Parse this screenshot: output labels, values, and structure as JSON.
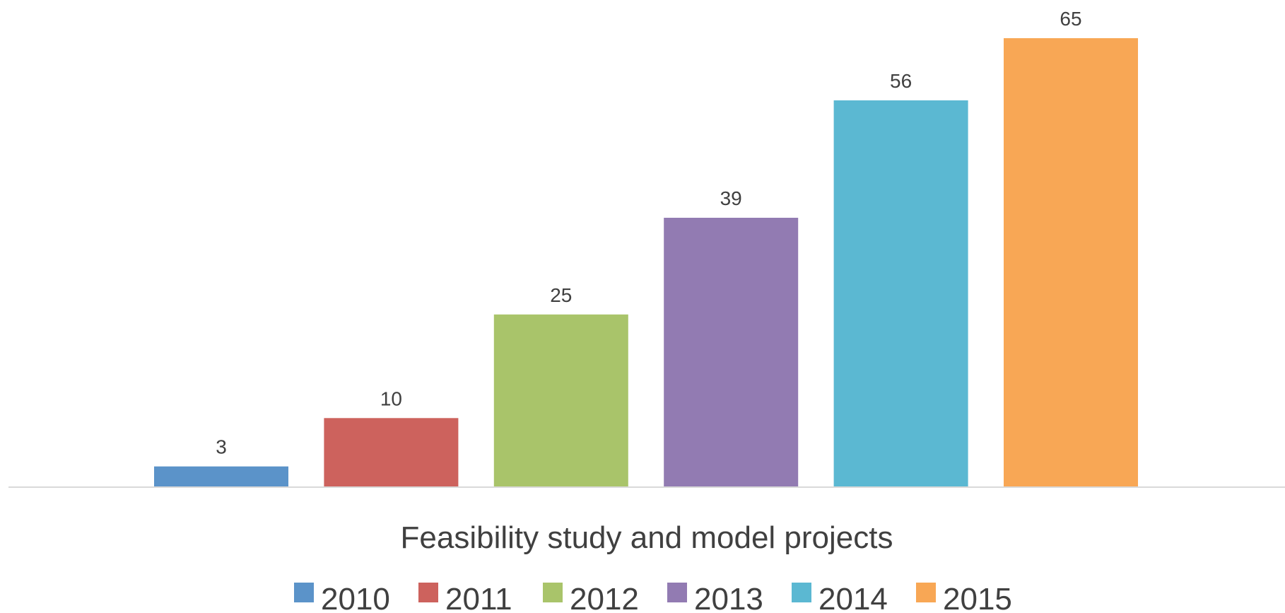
{
  "chart_data": {
    "type": "bar",
    "xlabel": "Feasibility study and model projects",
    "ylim": [
      0,
      65
    ],
    "grid": false,
    "legend_position": "bottom",
    "series": [
      {
        "name": "2010",
        "value": 3,
        "color": "#5b93c9"
      },
      {
        "name": "2011",
        "value": 10,
        "color": "#cd625d"
      },
      {
        "name": "2012",
        "value": 25,
        "color": "#a9c46a"
      },
      {
        "name": "2013",
        "value": 39,
        "color": "#927bb2"
      },
      {
        "name": "2014",
        "value": 56,
        "color": "#5bb8d2"
      },
      {
        "name": "2015",
        "value": 65,
        "color": "#f8a755"
      }
    ]
  }
}
